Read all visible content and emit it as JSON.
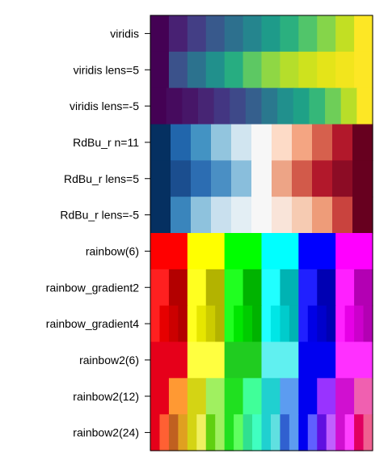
{
  "chart_data": {
    "type": "heatmap",
    "title": "",
    "xlabel": "",
    "ylabel": "",
    "grid": false,
    "legend": "none",
    "rows": [
      {
        "label": "viridis",
        "colors": [
          "#440154",
          "#482173",
          "#433E85",
          "#38598C",
          "#2D708E",
          "#25858E",
          "#1E9B8A",
          "#2BB07F",
          "#51C56A",
          "#85D54A",
          "#C2DF23",
          "#FDE725"
        ]
      },
      {
        "label": "viridis lens=5",
        "colors": [
          "#440154",
          "#3B528B",
          "#2C728E",
          "#21908C",
          "#27AD81",
          "#5DC863",
          "#8FD744",
          "#B5DE2B",
          "#CEE21E",
          "#E4E419",
          "#F2E51D",
          "#FDE725"
        ]
      },
      {
        "label": "viridis lens=-5",
        "colors": [
          "#440154",
          "#460B5E",
          "#471668",
          "#472574",
          "#433682",
          "#3E4989",
          "#355F8D",
          "#2A788E",
          "#21908D",
          "#1FA187",
          "#35B779",
          "#6ECE58",
          "#B8DE29",
          "#FDE725"
        ]
      },
      {
        "label": "RdBu_r n=11",
        "colors": [
          "#053061",
          "#2166AC",
          "#4393C3",
          "#92C5DE",
          "#D1E5F0",
          "#F7F7F7",
          "#FDDBC7",
          "#F4A582",
          "#D6604D",
          "#B2182B",
          "#67001F"
        ]
      },
      {
        "label": "RdBu_r lens=5",
        "colors": [
          "#053061",
          "#1B4E8F",
          "#2C6DB2",
          "#4A8FC4",
          "#89BEDC",
          "#F7F7F7",
          "#EDA486",
          "#D25A4A",
          "#B2182B",
          "#8C0C25",
          "#67001F"
        ]
      },
      {
        "label": "RdBu_r lens=-5",
        "colors": [
          "#053061",
          "#3A85BC",
          "#8EC2DD",
          "#C9E0EE",
          "#E3EEF4",
          "#F7F7F7",
          "#F9E4D9",
          "#F6CBB2",
          "#EE9C79",
          "#C9433E",
          "#67001F"
        ]
      },
      {
        "label": "rainbow(6)",
        "colors": [
          "#FF0000",
          "#FFFF00",
          "#00FF00",
          "#00FFFF",
          "#0000FF",
          "#FF00FF"
        ]
      },
      {
        "label": "rainbow_gradient2",
        "colors": [
          "#FF2020",
          "#B30000",
          "#FFFF20",
          "#B3B300",
          "#20FF20",
          "#00B300",
          "#20FFFF",
          "#00B3B3",
          "#2020FF",
          "#0000B3",
          "#FF20FF",
          "#B300B3"
        ]
      },
      {
        "label": "rainbow_gradient4",
        "colors": [
          "#FF2020",
          "#E60000",
          "#CC0000",
          "#B30000",
          "#FFFF20",
          "#E6E600",
          "#CCCC00",
          "#B3B300",
          "#20FF20",
          "#00E600",
          "#00CC00",
          "#00B300",
          "#20FFFF",
          "#00E6E6",
          "#00CCCC",
          "#00B3B3",
          "#2020FF",
          "#0000E6",
          "#0000CC",
          "#0000B3",
          "#FF20FF",
          "#E600E6",
          "#CC00CC",
          "#B300B3"
        ]
      },
      {
        "label": "rainbow2(6)",
        "colors": [
          "#E6001A",
          "#FFFF40",
          "#20CC20",
          "#60F0F0",
          "#0000F0",
          "#FF30FF"
        ]
      },
      {
        "label": "rainbow2(12)",
        "colors": [
          "#E6001A",
          "#FF9933",
          "#D4D414",
          "#A0F060",
          "#20E020",
          "#40FF99",
          "#20D0D0",
          "#5C9CF0",
          "#0000F0",
          "#9933FF",
          "#D010D0",
          "#F060B0"
        ]
      },
      {
        "label": "rainbow2(24)",
        "colors": [
          "#E6001A",
          "#FF6033",
          "#C06020",
          "#E0A020",
          "#D4D414",
          "#F0F060",
          "#60D010",
          "#A0F060",
          "#20E020",
          "#60FF60",
          "#30E090",
          "#40FFC0",
          "#20D0D0",
          "#60E0E0",
          "#3060D0",
          "#5C9CF0",
          "#0000F0",
          "#6060FF",
          "#6010E0",
          "#C060FF",
          "#D010D0",
          "#FF40FF",
          "#E00060",
          "#F06090"
        ]
      }
    ]
  }
}
